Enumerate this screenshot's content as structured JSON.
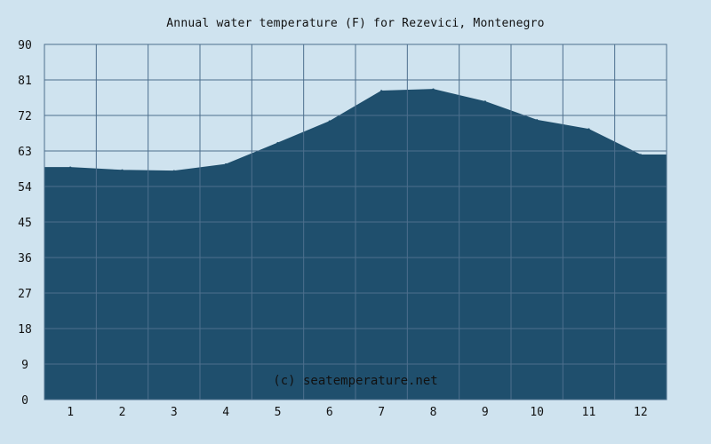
{
  "chart_data": {
    "type": "area",
    "title": "Annual water temperature (F) for Rezevici, Montenegro",
    "watermark": "(c) seatemperature.net",
    "x": [
      "1",
      "2",
      "3",
      "4",
      "5",
      "6",
      "7",
      "8",
      "9",
      "10",
      "11",
      "12"
    ],
    "x_ticks": [
      "1",
      "2",
      "3",
      "4",
      "5",
      "6",
      "7",
      "8",
      "9",
      "10",
      "11",
      "12"
    ],
    "y_ticks": [
      0,
      9,
      18,
      27,
      36,
      45,
      54,
      63,
      72,
      81,
      90
    ],
    "ylim": [
      0,
      90
    ],
    "xlabel": "",
    "ylabel": "",
    "grid": true,
    "series": [
      {
        "values": [
          58.8,
          58.1,
          57.9,
          59.6,
          65.0,
          70.5,
          78.2,
          78.6,
          75.5,
          70.8,
          68.5,
          62.0
        ]
      }
    ]
  },
  "colors": {
    "background": "#cfe3ef",
    "plot_bg": "#cfe3ef",
    "grid": "#4d6f8d",
    "area": "#1f4f6d",
    "text": "#111111",
    "watermark_text": "#e8f1f7"
  }
}
